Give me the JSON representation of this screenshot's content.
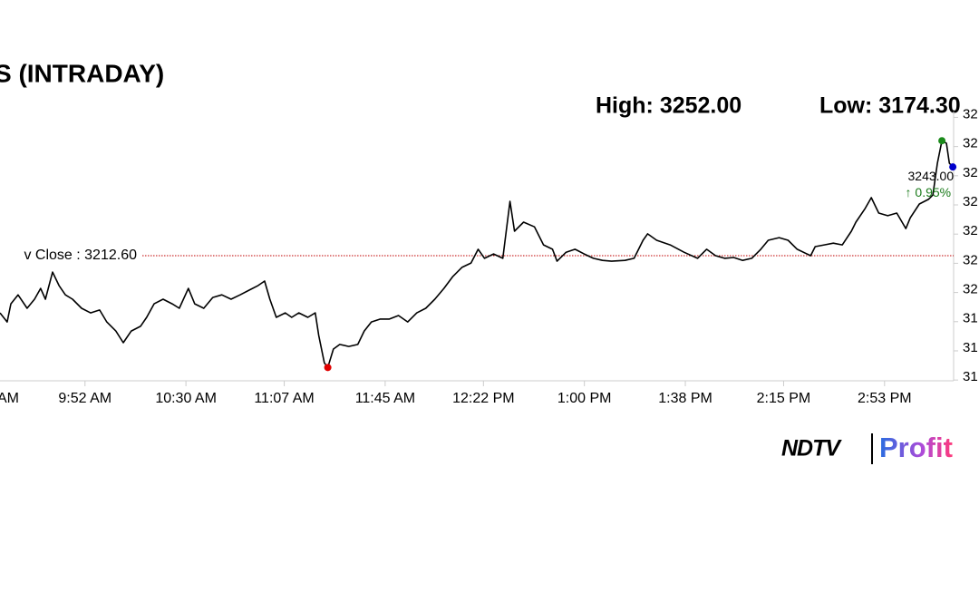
{
  "chart_data": {
    "type": "line",
    "title": "S (INTRADAY)",
    "high_label": "High: 3252.00",
    "low_label": "Low: 3174.30",
    "prev_close": {
      "value": 3212.6,
      "label": "v Close : 3212.60",
      "color": "#c00000"
    },
    "last_label": "3243.00",
    "change_label": "↑ 0.95%",
    "change_color": "#1a7a1a",
    "high_color": "#1a8a1a",
    "low_color": "#e00000",
    "last_color": "#0000cc",
    "color": "#000000",
    "brand": [
      "NDTV",
      "Profit"
    ],
    "x": [
      560.0,
      562.7,
      564.1,
      566.8,
      570.2,
      573.0,
      575.3,
      577.1,
      579.8,
      582.2,
      584.6,
      587.3,
      590.7,
      594.1,
      597.5,
      600.2,
      603.6,
      606.4,
      609.4,
      612.9,
      615.2,
      618.0,
      621.4,
      624.8,
      627.5,
      630.9,
      633.3,
      636.7,
      640.1,
      643.5,
      647.0,
      650.4,
      653.8,
      657.2,
      659.6,
      661.6,
      664.0,
      667.4,
      669.8,
      672.5,
      675.9,
      678.7,
      680.0,
      682.1,
      683.4,
      685.5,
      687.9,
      691.3,
      694.7,
      697.1,
      699.8,
      703.2,
      706.6,
      710.0,
      713.5,
      716.9,
      720.3,
      723.7,
      727.1,
      730.5,
      733.9,
      737.3,
      740.0,
      742.4,
      745.8,
      749.3,
      751.0,
      752.0,
      753.7,
      757.1,
      761.2,
      764.6,
      768.0,
      769.7,
      773.1,
      776.5,
      779.9,
      783.4,
      786.8,
      790.2,
      795.3,
      798.7,
      802.1,
      803.8,
      807.2,
      812.3,
      817.5,
      822.6,
      826.0,
      829.4,
      832.8,
      836.2,
      839.6,
      843.0,
      846.4,
      849.2,
      853.3,
      856.7,
      860.1,
      865.2,
      866.9,
      870.3,
      873.7,
      877.1,
      880.5,
      882.2,
      885.7,
      888.0,
      890.8,
      894.2,
      897.6,
      901.0,
      902.7,
      906.1,
      909.5,
      911.2,
      912.9,
      914.6,
      916.3,
      917.4,
      918.7
    ],
    "values": [
      3193.0,
      3189.9,
      3196.1,
      3199.2,
      3194.6,
      3197.7,
      3201.4,
      3197.7,
      3207.0,
      3202.4,
      3199.2,
      3197.7,
      3194.6,
      3193.0,
      3194.0,
      3189.9,
      3186.8,
      3182.8,
      3186.8,
      3188.4,
      3191.5,
      3196.1,
      3197.7,
      3196.1,
      3194.6,
      3201.4,
      3196.1,
      3194.6,
      3198.3,
      3199.2,
      3197.7,
      3199.2,
      3200.8,
      3202.4,
      3203.9,
      3197.7,
      3191.5,
      3193.0,
      3191.5,
      3193.0,
      3191.5,
      3193.0,
      3185.3,
      3175.9,
      3174.3,
      3180.6,
      3182.2,
      3181.5,
      3182.2,
      3186.8,
      3189.9,
      3190.9,
      3190.9,
      3192.1,
      3189.9,
      3193.0,
      3194.6,
      3197.7,
      3201.4,
      3205.5,
      3208.6,
      3210.1,
      3214.8,
      3211.7,
      3213.2,
      3211.7,
      3224.1,
      3231.2,
      3221.0,
      3224.1,
      3222.5,
      3216.3,
      3214.8,
      3210.7,
      3213.8,
      3214.8,
      3213.2,
      3211.7,
      3211.0,
      3210.7,
      3211.0,
      3211.7,
      3217.9,
      3220.1,
      3217.9,
      3216.3,
      3213.8,
      3211.7,
      3214.8,
      3212.6,
      3211.7,
      3212.0,
      3211.0,
      3211.7,
      3214.8,
      3217.9,
      3218.8,
      3217.9,
      3214.8,
      3212.6,
      3215.7,
      3216.3,
      3216.9,
      3216.3,
      3221.0,
      3224.1,
      3228.8,
      3232.5,
      3227.2,
      3226.3,
      3227.2,
      3221.9,
      3225.6,
      3230.3,
      3231.9,
      3233.4,
      3244.3,
      3252.0,
      3251.1,
      3244.3,
      3243.0
    ],
    "xlim": [
      560,
      919
    ],
    "ylim": [
      3168,
      3262
    ],
    "xticks": [
      {
        "value": 555,
        "label": "AM"
      },
      {
        "value": 592,
        "label": "9:52 AM"
      },
      {
        "value": 630,
        "label": "10:30 AM"
      },
      {
        "value": 667,
        "label": "11:07 AM"
      },
      {
        "value": 705,
        "label": "11:45 AM"
      },
      {
        "value": 742,
        "label": "12:22 PM"
      },
      {
        "value": 780,
        "label": "1:00 PM"
      },
      {
        "value": 818,
        "label": "1:38 PM"
      },
      {
        "value": 855,
        "label": "2:15 PM"
      },
      {
        "value": 893,
        "label": "2:53 PM"
      }
    ],
    "yticks": [
      {
        "value": 3260,
        "label": "32"
      },
      {
        "value": 3250,
        "label": "32"
      },
      {
        "value": 3240,
        "label": "32"
      },
      {
        "value": 3230,
        "label": "32"
      },
      {
        "value": 3220,
        "label": "32"
      },
      {
        "value": 3210,
        "label": "32"
      },
      {
        "value": 3200,
        "label": "32"
      },
      {
        "value": 3190,
        "label": "31"
      },
      {
        "value": 3180,
        "label": "31"
      },
      {
        "value": 3170,
        "label": "31"
      }
    ]
  }
}
